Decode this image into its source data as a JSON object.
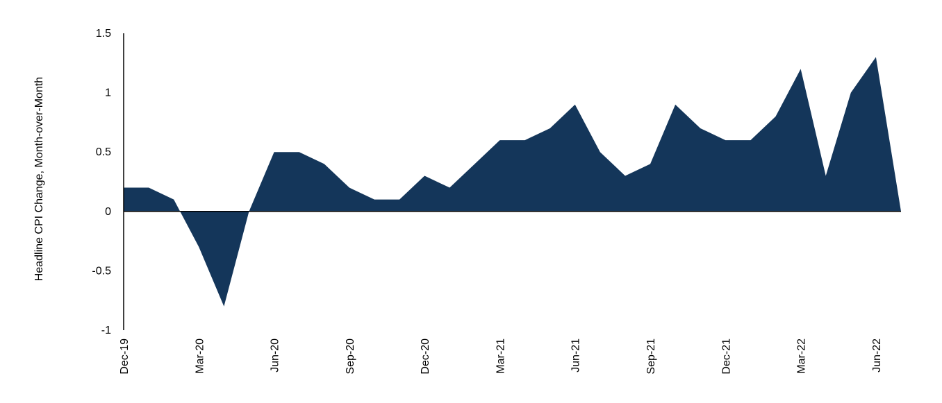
{
  "chart_data": {
    "type": "area",
    "title": "",
    "xlabel": "",
    "ylabel": "Headline CPI Change, Month-over-Month",
    "ylim": [
      -1,
      1.5
    ],
    "yticks": [
      "1.5",
      "1",
      "0.5",
      "0",
      "-0.5",
      "-1"
    ],
    "ytick_values": [
      1.5,
      1,
      0.5,
      0,
      -0.5,
      -1
    ],
    "x": [
      "Dec-19",
      "Jan-20",
      "Feb-20",
      "Mar-20",
      "Apr-20",
      "May-20",
      "Jun-20",
      "Jul-20",
      "Aug-20",
      "Sep-20",
      "Oct-20",
      "Nov-20",
      "Dec-20",
      "Jan-21",
      "Feb-21",
      "Mar-21",
      "Apr-21",
      "May-21",
      "Jun-21",
      "Jul-21",
      "Aug-21",
      "Sep-21",
      "Oct-21",
      "Nov-21",
      "Dec-21",
      "Jan-22",
      "Feb-22",
      "Mar-22",
      "Apr-22",
      "May-22",
      "Jun-22",
      "Jul-22"
    ],
    "xtick_labels": [
      "Dec-19",
      "Mar-20",
      "Jun-20",
      "Sep-20",
      "Dec-20",
      "Mar-21",
      "Jun-21",
      "Sep-21",
      "Dec-21",
      "Mar-22",
      "Jun-22"
    ],
    "xtick_indices": [
      0,
      3,
      6,
      9,
      12,
      15,
      18,
      21,
      24,
      27,
      30
    ],
    "series": [
      {
        "values": [
          0.2,
          0.2,
          0.1,
          -0.3,
          -0.8,
          0.0,
          0.5,
          0.5,
          0.4,
          0.2,
          0.1,
          0.1,
          0.3,
          0.2,
          0.4,
          0.6,
          0.6,
          0.7,
          0.9,
          0.5,
          0.3,
          0.4,
          0.9,
          0.7,
          0.6,
          0.6,
          0.8,
          1.2,
          0.3,
          1.0,
          1.3,
          0.0
        ]
      }
    ],
    "colors": {
      "fill": "#14365a",
      "axis": "#000000"
    },
    "grid": false,
    "legend": "none"
  }
}
